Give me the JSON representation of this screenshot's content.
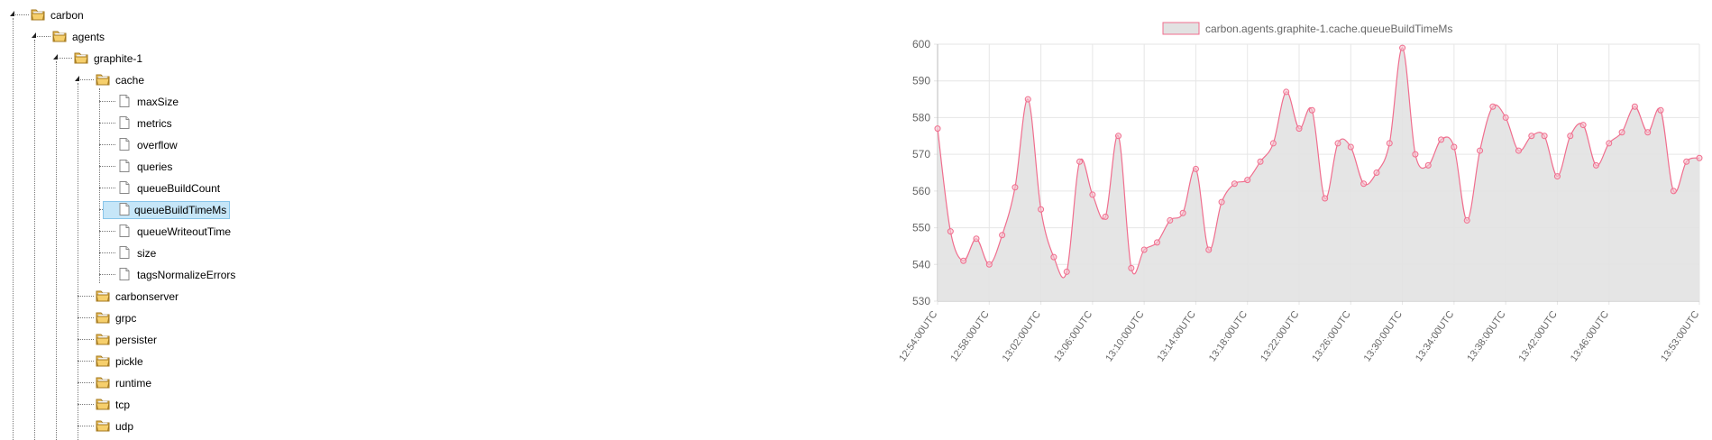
{
  "tree": [
    {
      "label": "carbon",
      "type": "folder",
      "depth": 0,
      "expanded": true
    },
    {
      "label": "agents",
      "type": "folder",
      "depth": 1,
      "expanded": true
    },
    {
      "label": "graphite-1",
      "type": "folder",
      "depth": 2,
      "expanded": true
    },
    {
      "label": "cache",
      "type": "folder",
      "depth": 3,
      "expanded": true
    },
    {
      "label": "maxSize",
      "type": "file",
      "depth": 4
    },
    {
      "label": "metrics",
      "type": "file",
      "depth": 4
    },
    {
      "label": "overflow",
      "type": "file",
      "depth": 4
    },
    {
      "label": "queries",
      "type": "file",
      "depth": 4
    },
    {
      "label": "queueBuildCount",
      "type": "file",
      "depth": 4
    },
    {
      "label": "queueBuildTimeMs",
      "type": "file",
      "depth": 4,
      "selected": true
    },
    {
      "label": "queueWriteoutTime",
      "type": "file",
      "depth": 4
    },
    {
      "label": "size",
      "type": "file",
      "depth": 4
    },
    {
      "label": "tagsNormalizeErrors",
      "type": "file",
      "depth": 4
    },
    {
      "label": "carbonserver",
      "type": "folder",
      "depth": 3,
      "expanded": false
    },
    {
      "label": "grpc",
      "type": "folder",
      "depth": 3,
      "expanded": false
    },
    {
      "label": "persister",
      "type": "folder",
      "depth": 3,
      "expanded": false
    },
    {
      "label": "pickle",
      "type": "folder",
      "depth": 3,
      "expanded": false
    },
    {
      "label": "runtime",
      "type": "folder",
      "depth": 3,
      "expanded": false
    },
    {
      "label": "tcp",
      "type": "folder",
      "depth": 3,
      "expanded": false
    },
    {
      "label": "udp",
      "type": "folder",
      "depth": 3,
      "expanded": false
    }
  ],
  "chart_data": {
    "type": "area",
    "legend": "carbon.agents.graphite-1.cache.queueBuildTimeMs",
    "legend_position": "top-center",
    "series": [
      {
        "name": "carbon.agents.graphite-1.cache.queueBuildTimeMs",
        "color": "#f06e8e",
        "fill": "#e2e2e2",
        "values": [
          577,
          549,
          541,
          547,
          540,
          548,
          561,
          585,
          555,
          542,
          538,
          568,
          559,
          553,
          575,
          539,
          544,
          546,
          552,
          554,
          566,
          544,
          557,
          562,
          563,
          568,
          573,
          587,
          577,
          582,
          558,
          573,
          572,
          562,
          565,
          573,
          599,
          570,
          567,
          574,
          572,
          552,
          571,
          583,
          580,
          571,
          575,
          575,
          564,
          575,
          578,
          567,
          573,
          576,
          583,
          576,
          582,
          560,
          568,
          569
        ]
      }
    ],
    "x_labels": [
      "12:54:00UTC",
      "12:58:00UTC",
      "13:02:00UTC",
      "13:06:00UTC",
      "13:10:00UTC",
      "13:14:00UTC",
      "13:18:00UTC",
      "13:22:00UTC",
      "13:26:00UTC",
      "13:30:00UTC",
      "13:34:00UTC",
      "13:38:00UTC",
      "13:42:00UTC",
      "13:46:00UTC",
      "13:53:00UTC"
    ],
    "x_label_indices": [
      0,
      4,
      8,
      12,
      16,
      20,
      24,
      28,
      32,
      36,
      40,
      44,
      48,
      52,
      59
    ],
    "y_ticks": [
      530,
      540,
      550,
      560,
      570,
      580,
      590,
      600
    ],
    "ylim": [
      530,
      600
    ],
    "grid": true,
    "colors": {
      "grid": "#e6e6e6",
      "axis": "#bbbbbb",
      "tick_text": "#666666",
      "legend_text": "#666666"
    }
  }
}
